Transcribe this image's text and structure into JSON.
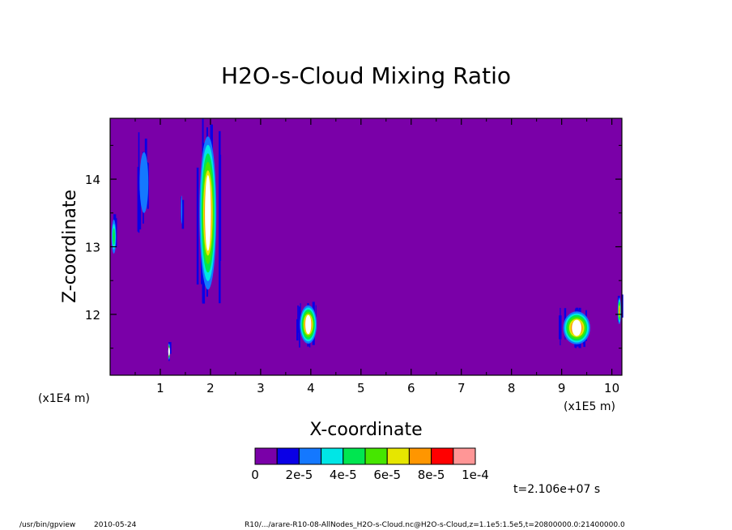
{
  "chart_data": {
    "type": "heatmap",
    "title": "H2O-s-Cloud Mixing Ratio",
    "xlabel": "X-coordinate",
    "ylabel": "Z-coordinate",
    "x_unit": "(x1E5 m)",
    "y_unit": "(x1E4 m)",
    "xlim": [
      0,
      10.2
    ],
    "ylim": [
      11.1,
      14.9
    ],
    "x_ticks": [
      "1",
      "2",
      "3",
      "4",
      "5",
      "6",
      "7",
      "8",
      "9",
      "10"
    ],
    "y_ticks": [
      "12",
      "13",
      "14"
    ],
    "background_value": 0,
    "colorbar": {
      "colors": [
        "#7a00a8",
        "#0a00e6",
        "#1478ff",
        "#00e6e6",
        "#00e650",
        "#46e600",
        "#e6e600",
        "#ff9600",
        "#ff0000",
        "#ff9696"
      ],
      "labels": [
        "0",
        "2e-5",
        "4e-5",
        "6e-5",
        "8e-5",
        "1e-4"
      ]
    },
    "cloud_regions": [
      {
        "x": [
          0.0,
          0.15
        ],
        "z": [
          12.8,
          13.5
        ],
        "peak": 4e-05
      },
      {
        "x": [
          0.5,
          0.85
        ],
        "z": [
          13.2,
          14.7
        ],
        "peak": 2e-05
      },
      {
        "x": [
          1.15,
          1.2
        ],
        "z": [
          11.3,
          11.6
        ],
        "peak": 0.0001
      },
      {
        "x": [
          1.4,
          1.45
        ],
        "z": [
          13.2,
          13.9
        ],
        "peak": 2e-05
      },
      {
        "x": [
          1.7,
          2.2
        ],
        "z": [
          12.1,
          14.9
        ],
        "peak": 0.0001
      },
      {
        "x": [
          3.7,
          4.2
        ],
        "z": [
          11.5,
          12.2
        ],
        "peak": 0.0001
      },
      {
        "x": [
          8.9,
          9.7
        ],
        "z": [
          11.5,
          12.1
        ],
        "peak": 0.0001
      },
      {
        "x": [
          10.1,
          10.2
        ],
        "z": [
          11.8,
          12.3
        ],
        "peak": 8e-05
      }
    ]
  },
  "time_label": "t=2.106e+07 s",
  "footer": {
    "program": "/usr/bin/gpview",
    "date": "2010-05-24",
    "source": "R10/.../arare-R10-08-AllNodes_H2O-s-Cloud.nc@H2O-s-Cloud,z=1.1e5:1.5e5,t=20800000.0:21400000.0"
  }
}
